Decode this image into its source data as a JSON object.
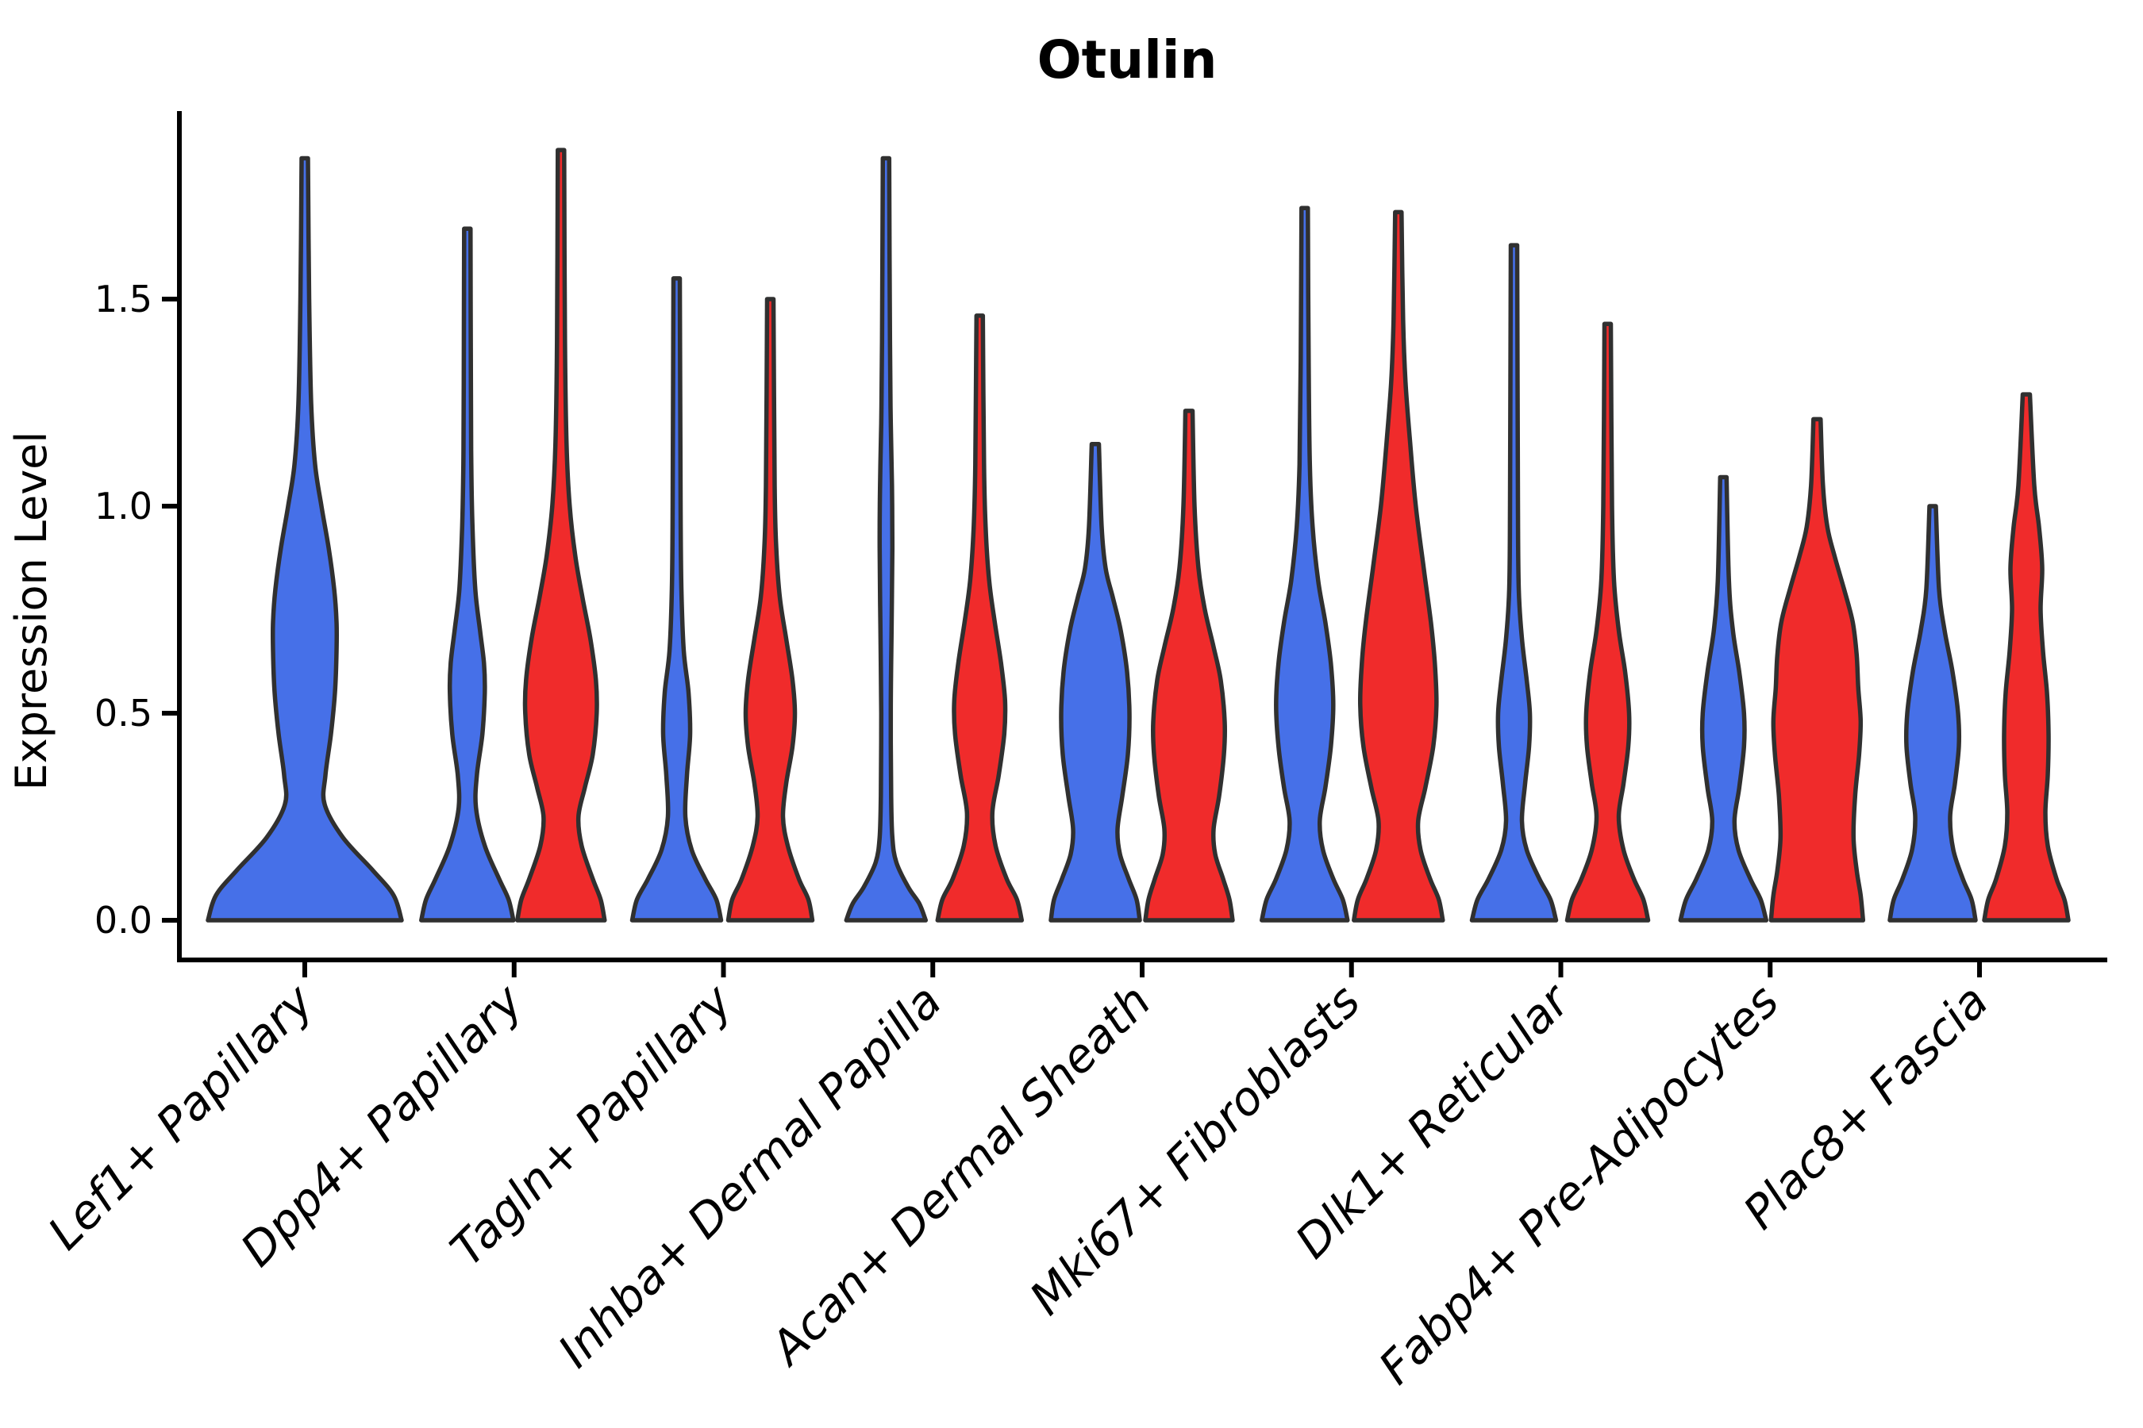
{
  "title": "Otulin",
  "axes": {
    "y_label": "Expression Level",
    "y_ticks": [
      "0.0",
      "0.5",
      "1.0",
      "1.5"
    ],
    "y_tick_values": [
      0.0,
      0.5,
      1.0,
      1.5
    ],
    "x_tick_labels": [
      "Lef1+ Papillary",
      "Dpp4+ Papillary",
      "Tagln+ Papillary",
      "Inhba+ Dermal Papilla",
      "Acan+ Dermal Sheath",
      "Mki67+ Fibroblasts",
      "Dlk1+ Reticular",
      "Fabp4+ Pre-Adipocytes",
      "Plac8+ Fascia"
    ]
  },
  "colors": {
    "blue_fill": "#4670E8",
    "red_fill": "#F02B2B",
    "outline": "#303030",
    "axis": "#000000",
    "background": "#ffffff"
  },
  "chart_data": {
    "type": "violin",
    "title": "Otulin",
    "xlabel": "",
    "ylabel": "Expression Level",
    "ylim": [
      0,
      1.9
    ],
    "grid": false,
    "legend": "none (split violin colors: blue = left violin, red = right violin)",
    "categories": [
      "Lef1+ Papillary",
      "Dpp4+ Papillary",
      "Tagln+ Papillary",
      "Inhba+ Dermal Papilla",
      "Acan+ Dermal Sheath",
      "Mki67+ Fibroblasts",
      "Dlk1+ Reticular",
      "Fabp4+ Pre-Adipocytes",
      "Plac8+ Fascia"
    ],
    "violins": [
      {
        "category": "Lef1+ Papillary",
        "condition": "blue",
        "position": "center",
        "max_expression": 1.84,
        "profile": [
          [
            0,
            122
          ],
          [
            0.06,
            112
          ],
          [
            0.12,
            86
          ],
          [
            0.2,
            48
          ],
          [
            0.28,
            25
          ],
          [
            0.35,
            26
          ],
          [
            0.45,
            33
          ],
          [
            0.55,
            38
          ],
          [
            0.65,
            40
          ],
          [
            0.72,
            40
          ],
          [
            0.8,
            37
          ],
          [
            0.9,
            30
          ],
          [
            1.0,
            21
          ],
          [
            1.1,
            13
          ],
          [
            1.25,
            8
          ],
          [
            1.5,
            5.5
          ],
          [
            1.84,
            4
          ]
        ]
      },
      {
        "category": "Dpp4+ Papillary",
        "condition": "blue",
        "position": "left",
        "max_expression": 1.67,
        "profile": [
          [
            0,
            58
          ],
          [
            0.05,
            52
          ],
          [
            0.1,
            40
          ],
          [
            0.18,
            22
          ],
          [
            0.27,
            11
          ],
          [
            0.35,
            12
          ],
          [
            0.45,
            19
          ],
          [
            0.55,
            22
          ],
          [
            0.62,
            21
          ],
          [
            0.7,
            16
          ],
          [
            0.8,
            10
          ],
          [
            0.95,
            6.5
          ],
          [
            1.1,
            5
          ],
          [
            1.3,
            4.5
          ],
          [
            1.67,
            4
          ]
        ]
      },
      {
        "category": "Dpp4+ Papillary",
        "condition": "red",
        "position": "right",
        "max_expression": 1.86,
        "profile": [
          [
            0,
            55
          ],
          [
            0.05,
            50
          ],
          [
            0.1,
            40
          ],
          [
            0.18,
            26
          ],
          [
            0.25,
            22
          ],
          [
            0.32,
            30
          ],
          [
            0.4,
            40
          ],
          [
            0.5,
            45
          ],
          [
            0.58,
            44
          ],
          [
            0.68,
            37
          ],
          [
            0.78,
            27
          ],
          [
            0.88,
            18
          ],
          [
            1.0,
            11
          ],
          [
            1.15,
            7
          ],
          [
            1.4,
            5
          ],
          [
            1.86,
            4
          ]
        ]
      },
      {
        "category": "Tagln+ Papillary",
        "condition": "blue",
        "position": "left",
        "max_expression": 1.55,
        "profile": [
          [
            0,
            56
          ],
          [
            0.05,
            50
          ],
          [
            0.1,
            36
          ],
          [
            0.17,
            19
          ],
          [
            0.25,
            11
          ],
          [
            0.35,
            13
          ],
          [
            0.45,
            17
          ],
          [
            0.55,
            15
          ],
          [
            0.65,
            9
          ],
          [
            0.8,
            6
          ],
          [
            1.0,
            5
          ],
          [
            1.55,
            4
          ]
        ]
      },
      {
        "category": "Tagln+ Papillary",
        "condition": "red",
        "position": "right",
        "max_expression": 1.5,
        "profile": [
          [
            0,
            53
          ],
          [
            0.05,
            48
          ],
          [
            0.1,
            36
          ],
          [
            0.18,
            22
          ],
          [
            0.25,
            16
          ],
          [
            0.33,
            20
          ],
          [
            0.42,
            28
          ],
          [
            0.5,
            31
          ],
          [
            0.58,
            28
          ],
          [
            0.68,
            20
          ],
          [
            0.78,
            12
          ],
          [
            0.9,
            7.5
          ],
          [
            1.05,
            5.5
          ],
          [
            1.5,
            4
          ]
        ]
      },
      {
        "category": "Inhba+ Dermal Papilla",
        "condition": "blue",
        "position": "left",
        "max_expression": 1.84,
        "profile": [
          [
            0,
            50
          ],
          [
            0.04,
            42
          ],
          [
            0.08,
            28
          ],
          [
            0.14,
            13
          ],
          [
            0.2,
            8
          ],
          [
            0.3,
            6.5
          ],
          [
            0.5,
            6
          ],
          [
            0.7,
            7
          ],
          [
            0.9,
            8
          ],
          [
            1.05,
            7.5
          ],
          [
            1.2,
            6
          ],
          [
            1.4,
            5
          ],
          [
            1.84,
            4
          ]
        ]
      },
      {
        "category": "Inhba+ Dermal Papilla",
        "condition": "red",
        "position": "right",
        "max_expression": 1.46,
        "profile": [
          [
            0,
            53
          ],
          [
            0.05,
            47
          ],
          [
            0.1,
            34
          ],
          [
            0.18,
            20
          ],
          [
            0.26,
            16
          ],
          [
            0.35,
            24
          ],
          [
            0.45,
            31
          ],
          [
            0.53,
            32
          ],
          [
            0.62,
            27
          ],
          [
            0.72,
            19
          ],
          [
            0.82,
            12
          ],
          [
            0.95,
            7.5
          ],
          [
            1.1,
            5.5
          ],
          [
            1.46,
            4
          ]
        ]
      },
      {
        "category": "Acan+ Dermal Sheath",
        "condition": "blue",
        "position": "left",
        "max_expression": 1.15,
        "profile": [
          [
            0,
            56
          ],
          [
            0.05,
            52
          ],
          [
            0.1,
            42
          ],
          [
            0.16,
            31
          ],
          [
            0.22,
            28
          ],
          [
            0.3,
            34
          ],
          [
            0.4,
            41
          ],
          [
            0.5,
            43
          ],
          [
            0.6,
            40
          ],
          [
            0.7,
            32
          ],
          [
            0.78,
            22
          ],
          [
            0.85,
            13
          ],
          [
            0.95,
            8
          ],
          [
            1.15,
            4.5
          ]
        ]
      },
      {
        "category": "Acan+ Dermal Sheath",
        "condition": "red",
        "position": "right",
        "max_expression": 1.23,
        "profile": [
          [
            0,
            55
          ],
          [
            0.05,
            51
          ],
          [
            0.1,
            43
          ],
          [
            0.16,
            33
          ],
          [
            0.22,
            31
          ],
          [
            0.3,
            38
          ],
          [
            0.4,
            44
          ],
          [
            0.48,
            45
          ],
          [
            0.58,
            40
          ],
          [
            0.66,
            31
          ],
          [
            0.75,
            20
          ],
          [
            0.85,
            12
          ],
          [
            1.0,
            7
          ],
          [
            1.23,
            4.5
          ]
        ]
      },
      {
        "category": "Mki67+ Fibroblasts",
        "condition": "blue",
        "position": "left",
        "max_expression": 1.72,
        "profile": [
          [
            0,
            54
          ],
          [
            0.05,
            48
          ],
          [
            0.1,
            36
          ],
          [
            0.17,
            23
          ],
          [
            0.24,
            19
          ],
          [
            0.32,
            26
          ],
          [
            0.42,
            33
          ],
          [
            0.52,
            36
          ],
          [
            0.62,
            33
          ],
          [
            0.72,
            26
          ],
          [
            0.82,
            17
          ],
          [
            0.95,
            10
          ],
          [
            1.1,
            6.5
          ],
          [
            1.35,
            5
          ],
          [
            1.72,
            4
          ]
        ]
      },
      {
        "category": "Mki67+ Fibroblasts",
        "condition": "red",
        "position": "right",
        "max_expression": 1.71,
        "profile": [
          [
            0,
            56
          ],
          [
            0.05,
            51
          ],
          [
            0.1,
            40
          ],
          [
            0.17,
            28
          ],
          [
            0.24,
            25
          ],
          [
            0.32,
            34
          ],
          [
            0.42,
            44
          ],
          [
            0.52,
            48
          ],
          [
            0.62,
            46
          ],
          [
            0.72,
            41
          ],
          [
            0.85,
            32
          ],
          [
            1.0,
            22
          ],
          [
            1.15,
            15
          ],
          [
            1.3,
            9
          ],
          [
            1.45,
            6
          ],
          [
            1.71,
            4
          ]
        ]
      },
      {
        "category": "Dlk1+ Reticular",
        "condition": "blue",
        "position": "left",
        "max_expression": 1.63,
        "profile": [
          [
            0,
            53
          ],
          [
            0.05,
            46
          ],
          [
            0.1,
            32
          ],
          [
            0.17,
            16
          ],
          [
            0.24,
            10
          ],
          [
            0.33,
            14
          ],
          [
            0.42,
            19
          ],
          [
            0.5,
            20
          ],
          [
            0.58,
            16
          ],
          [
            0.68,
            10
          ],
          [
            0.8,
            6
          ],
          [
            1.0,
            5
          ],
          [
            1.63,
            4
          ]
        ]
      },
      {
        "category": "Dlk1+ Reticular",
        "condition": "red",
        "position": "right",
        "max_expression": 1.44,
        "profile": [
          [
            0,
            51
          ],
          [
            0.05,
            45
          ],
          [
            0.1,
            33
          ],
          [
            0.17,
            20
          ],
          [
            0.25,
            14
          ],
          [
            0.33,
            20
          ],
          [
            0.42,
            26
          ],
          [
            0.5,
            27
          ],
          [
            0.6,
            22
          ],
          [
            0.7,
            14
          ],
          [
            0.82,
            8
          ],
          [
            1.0,
            5.5
          ],
          [
            1.44,
            4
          ]
        ]
      },
      {
        "category": "Fabp4+ Pre-Adipocytes",
        "condition": "blue",
        "position": "left",
        "max_expression": 1.07,
        "profile": [
          [
            0,
            54
          ],
          [
            0.05,
            47
          ],
          [
            0.1,
            34
          ],
          [
            0.17,
            19
          ],
          [
            0.24,
            14
          ],
          [
            0.32,
            20
          ],
          [
            0.42,
            26
          ],
          [
            0.5,
            26
          ],
          [
            0.6,
            20
          ],
          [
            0.7,
            12
          ],
          [
            0.82,
            7
          ],
          [
            1.07,
            4
          ]
        ]
      },
      {
        "category": "Fabp4+ Pre-Adipocytes",
        "condition": "red",
        "position": "right",
        "max_expression": 1.21,
        "profile": [
          [
            0,
            58
          ],
          [
            0.06,
            55
          ],
          [
            0.12,
            50
          ],
          [
            0.2,
            46
          ],
          [
            0.3,
            48
          ],
          [
            0.4,
            53
          ],
          [
            0.48,
            55
          ],
          [
            0.56,
            52
          ],
          [
            0.64,
            50
          ],
          [
            0.72,
            45
          ],
          [
            0.8,
            34
          ],
          [
            0.88,
            22
          ],
          [
            0.95,
            13
          ],
          [
            1.05,
            7.5
          ],
          [
            1.21,
            4.5
          ]
        ]
      },
      {
        "category": "Plac8+ Fascia",
        "condition": "blue",
        "position": "left",
        "max_expression": 1.0,
        "profile": [
          [
            0,
            54
          ],
          [
            0.05,
            49
          ],
          [
            0.1,
            38
          ],
          [
            0.17,
            26
          ],
          [
            0.25,
            22
          ],
          [
            0.33,
            28
          ],
          [
            0.42,
            33
          ],
          [
            0.5,
            32
          ],
          [
            0.6,
            25
          ],
          [
            0.7,
            15
          ],
          [
            0.8,
            8
          ],
          [
            1.0,
            4
          ]
        ]
      },
      {
        "category": "Plac8+ Fascia",
        "condition": "red",
        "position": "right",
        "max_expression": 1.27,
        "profile": [
          [
            0,
            53
          ],
          [
            0.05,
            48
          ],
          [
            0.1,
            38
          ],
          [
            0.18,
            27
          ],
          [
            0.26,
            24
          ],
          [
            0.35,
            27
          ],
          [
            0.45,
            28
          ],
          [
            0.55,
            26
          ],
          [
            0.65,
            21
          ],
          [
            0.75,
            18
          ],
          [
            0.85,
            20
          ],
          [
            0.95,
            16
          ],
          [
            1.05,
            10
          ],
          [
            1.27,
            4.5
          ]
        ]
      }
    ]
  }
}
